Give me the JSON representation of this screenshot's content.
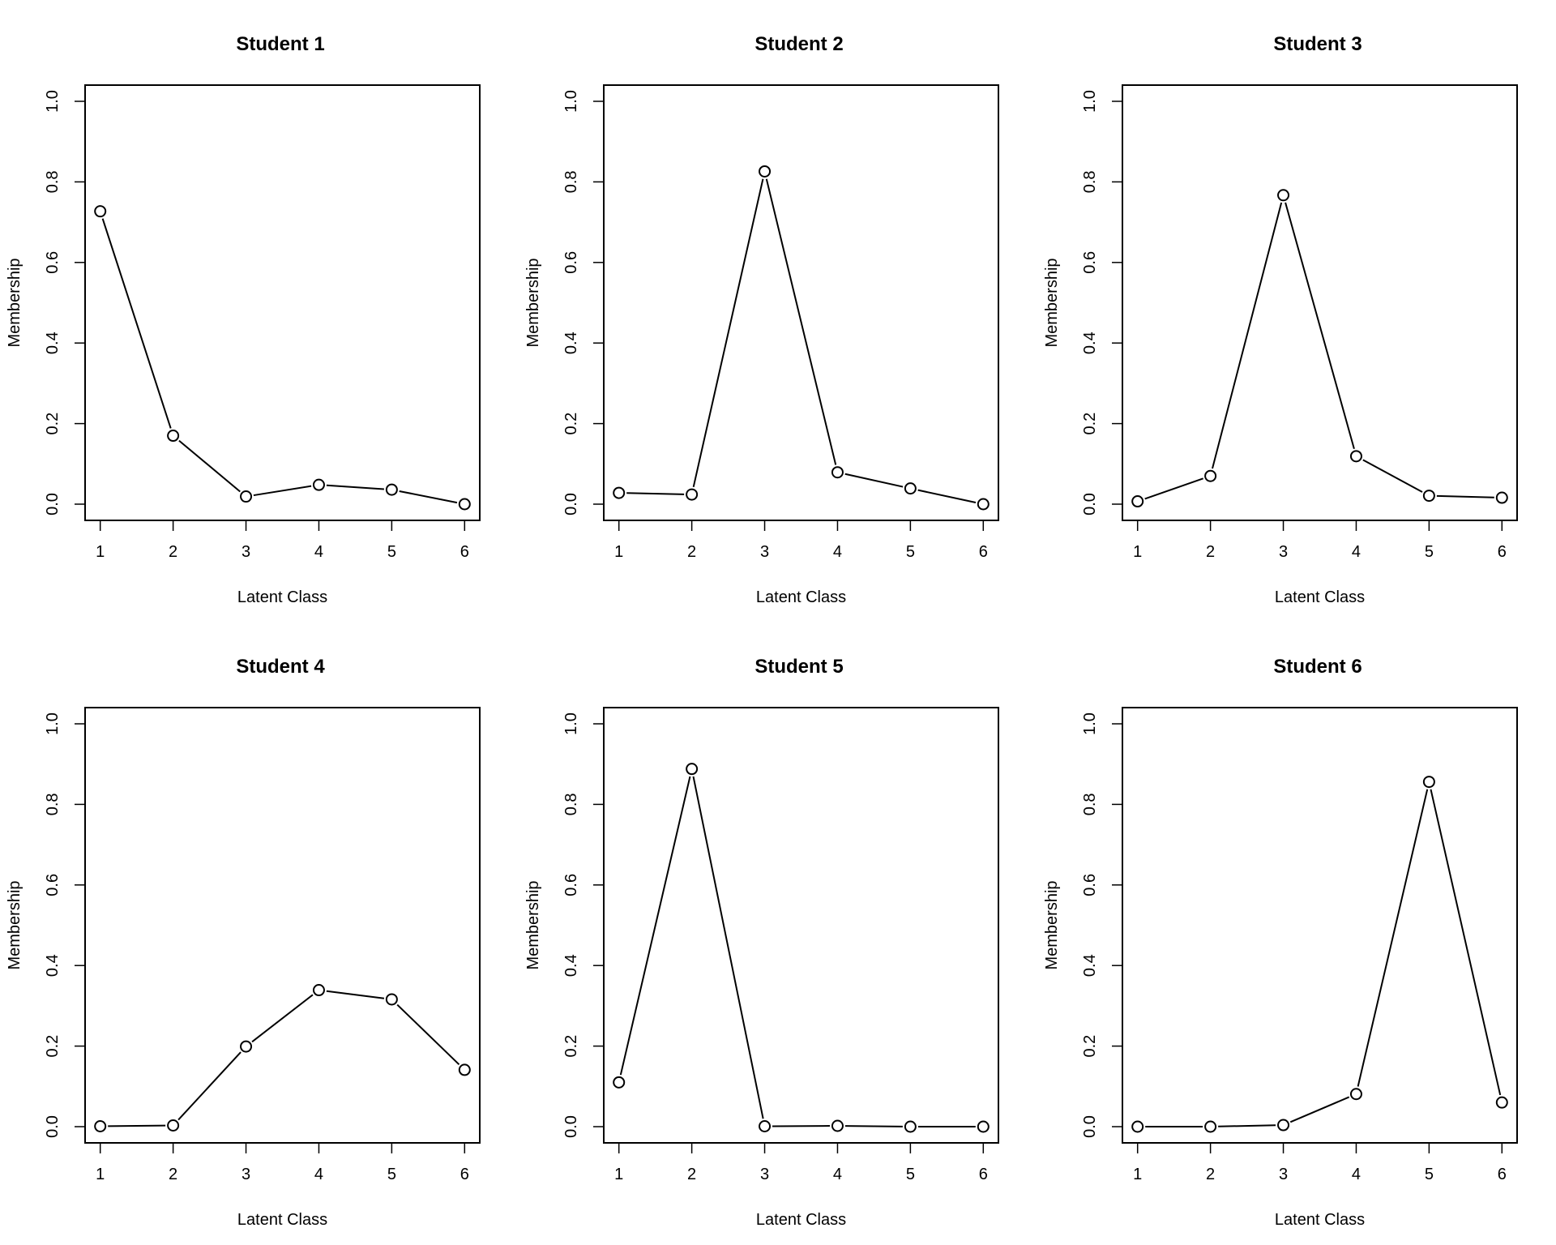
{
  "chart_data": [
    {
      "type": "line",
      "title": "Student 1",
      "xlabel": "Latent Class",
      "ylabel": "Membership",
      "x": [
        1,
        2,
        3,
        4,
        5,
        6
      ],
      "y": [
        0.727,
        0.17,
        0.019,
        0.048,
        0.036,
        0.0
      ],
      "xlim": [
        1,
        6
      ],
      "ylim": [
        0,
        1
      ],
      "xticks": [
        "1",
        "2",
        "3",
        "4",
        "5",
        "6"
      ],
      "yticks": [
        "0.0",
        "0.2",
        "0.4",
        "0.6",
        "0.8",
        "1.0"
      ],
      "grid": false,
      "marker": "open-circle"
    },
    {
      "type": "line",
      "title": "Student 2",
      "xlabel": "Latent Class",
      "ylabel": "Membership",
      "x": [
        1,
        2,
        3,
        4,
        5,
        6
      ],
      "y": [
        0.028,
        0.024,
        0.826,
        0.079,
        0.039,
        0.0
      ],
      "xlim": [
        1,
        6
      ],
      "ylim": [
        0,
        1
      ],
      "xticks": [
        "1",
        "2",
        "3",
        "4",
        "5",
        "6"
      ],
      "yticks": [
        "0.0",
        "0.2",
        "0.4",
        "0.6",
        "0.8",
        "1.0"
      ],
      "grid": false,
      "marker": "open-circle"
    },
    {
      "type": "line",
      "title": "Student 3",
      "xlabel": "Latent Class",
      "ylabel": "Membership",
      "x": [
        1,
        2,
        3,
        4,
        5,
        6
      ],
      "y": [
        0.007,
        0.07,
        0.767,
        0.119,
        0.021,
        0.016
      ],
      "xlim": [
        1,
        6
      ],
      "ylim": [
        0,
        1
      ],
      "xticks": [
        "1",
        "2",
        "3",
        "4",
        "5",
        "6"
      ],
      "yticks": [
        "0.0",
        "0.2",
        "0.4",
        "0.6",
        "0.8",
        "1.0"
      ],
      "grid": false,
      "marker": "open-circle"
    },
    {
      "type": "line",
      "title": "Student 4",
      "xlabel": "Latent Class",
      "ylabel": "Membership",
      "x": [
        1,
        2,
        3,
        4,
        5,
        6
      ],
      "y": [
        0.001,
        0.003,
        0.199,
        0.339,
        0.316,
        0.141
      ],
      "xlim": [
        1,
        6
      ],
      "ylim": [
        0,
        1
      ],
      "xticks": [
        "1",
        "2",
        "3",
        "4",
        "5",
        "6"
      ],
      "yticks": [
        "0.0",
        "0.2",
        "0.4",
        "0.6",
        "0.8",
        "1.0"
      ],
      "grid": false,
      "marker": "open-circle"
    },
    {
      "type": "line",
      "title": "Student 5",
      "xlabel": "Latent Class",
      "ylabel": "Membership",
      "x": [
        1,
        2,
        3,
        4,
        5,
        6
      ],
      "y": [
        0.11,
        0.888,
        0.001,
        0.002,
        0.0,
        0.0
      ],
      "xlim": [
        1,
        6
      ],
      "ylim": [
        0,
        1
      ],
      "xticks": [
        "1",
        "2",
        "3",
        "4",
        "5",
        "6"
      ],
      "yticks": [
        "0.0",
        "0.2",
        "0.4",
        "0.6",
        "0.8",
        "1.0"
      ],
      "grid": false,
      "marker": "open-circle"
    },
    {
      "type": "line",
      "title": "Student 6",
      "xlabel": "Latent Class",
      "ylabel": "Membership",
      "x": [
        1,
        2,
        3,
        4,
        5,
        6
      ],
      "y": [
        0.0,
        0.0,
        0.004,
        0.081,
        0.856,
        0.06
      ],
      "xlim": [
        1,
        6
      ],
      "ylim": [
        0,
        1
      ],
      "xticks": [
        "1",
        "2",
        "3",
        "4",
        "5",
        "6"
      ],
      "yticks": [
        "0.0",
        "0.2",
        "0.4",
        "0.6",
        "0.8",
        "1.0"
      ],
      "grid": false,
      "marker": "open-circle"
    }
  ]
}
